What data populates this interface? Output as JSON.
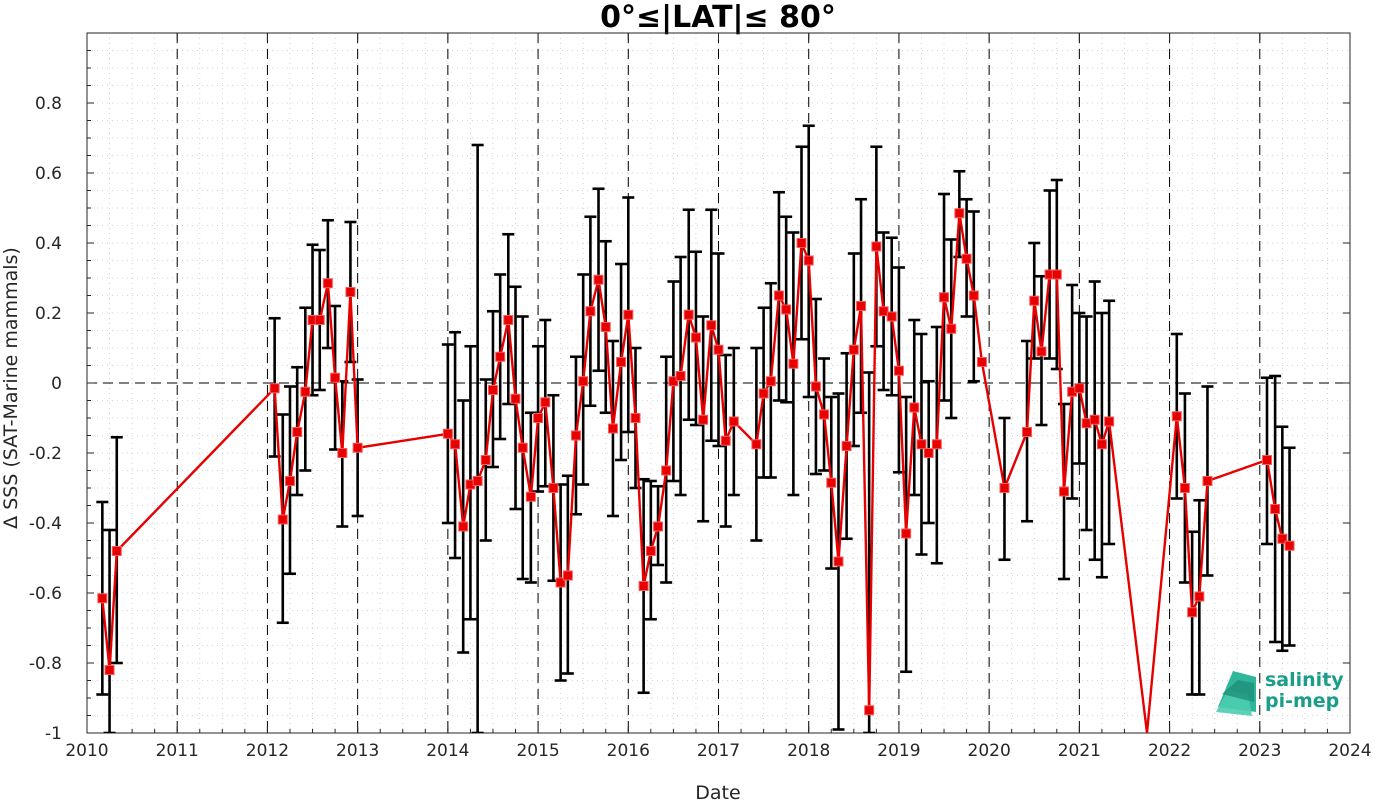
{
  "chart_data": {
    "type": "line",
    "title": "0°≤|LAT|≤ 80°",
    "xlabel": "Date",
    "ylabel": "Δ SSS (SAT-Marine mammals)",
    "xlim": [
      2010,
      2024
    ],
    "ylim": [
      -1,
      1
    ],
    "x_ticks": [
      "2010",
      "2011",
      "2012",
      "2013",
      "2014",
      "2015",
      "2016",
      "2017",
      "2018",
      "2019",
      "2020",
      "2021",
      "2022",
      "2023",
      "2024"
    ],
    "y_ticks": [
      "-1",
      "-0.8",
      "-0.6",
      "-0.4",
      "-0.2",
      "0",
      "0.2",
      "0.4",
      "0.6",
      "0.8"
    ],
    "grid": "minor dotted",
    "year_lines": "dashed vertical at each year",
    "zero_line": "dashed horizontal at 0",
    "series": [
      {
        "color": "#e60000",
        "marker": "square",
        "errorbar_color": "#000000",
        "points": [
          {
            "x": 2010.17,
            "y": -0.615,
            "lo": -0.89,
            "hi": -0.34
          },
          {
            "x": 2010.25,
            "y": -0.82,
            "lo": -1.0,
            "hi": -0.42
          },
          {
            "x": 2010.33,
            "y": -0.48,
            "lo": -0.8,
            "hi": -0.155
          },
          {
            "x": 2012.08,
            "y": -0.015,
            "lo": -0.21,
            "hi": 0.185
          },
          {
            "x": 2012.17,
            "y": -0.39,
            "lo": -0.685,
            "hi": -0.09
          },
          {
            "x": 2012.25,
            "y": -0.28,
            "lo": -0.545,
            "hi": -0.01
          },
          {
            "x": 2012.33,
            "y": -0.14,
            "lo": -0.32,
            "hi": 0.045
          },
          {
            "x": 2012.42,
            "y": -0.025,
            "lo": -0.25,
            "hi": 0.215
          },
          {
            "x": 2012.5,
            "y": 0.18,
            "lo": -0.035,
            "hi": 0.395
          },
          {
            "x": 2012.58,
            "y": 0.18,
            "lo": -0.02,
            "hi": 0.38
          },
          {
            "x": 2012.67,
            "y": 0.285,
            "lo": 0.1,
            "hi": 0.465
          },
          {
            "x": 2012.75,
            "y": 0.015,
            "lo": -0.19,
            "hi": 0.22
          },
          {
            "x": 2012.83,
            "y": -0.2,
            "lo": -0.41,
            "hi": 0.005
          },
          {
            "x": 2012.92,
            "y": 0.26,
            "lo": 0.06,
            "hi": 0.46
          },
          {
            "x": 2013.0,
            "y": -0.185,
            "lo": -0.38,
            "hi": 0.01
          },
          {
            "x": 2014.0,
            "y": -0.145,
            "lo": -0.4,
            "hi": 0.11
          },
          {
            "x": 2014.08,
            "y": -0.175,
            "lo": -0.5,
            "hi": 0.145
          },
          {
            "x": 2014.17,
            "y": -0.41,
            "lo": -0.77,
            "hi": -0.05
          },
          {
            "x": 2014.25,
            "y": -0.29,
            "lo": -0.675,
            "hi": 0.105
          },
          {
            "x": 2014.33,
            "y": -0.28,
            "lo": -1.0,
            "hi": 0.68
          },
          {
            "x": 2014.42,
            "y": -0.22,
            "lo": -0.45,
            "hi": 0.01
          },
          {
            "x": 2014.5,
            "y": -0.02,
            "lo": -0.24,
            "hi": 0.205
          },
          {
            "x": 2014.58,
            "y": 0.075,
            "lo": -0.16,
            "hi": 0.31
          },
          {
            "x": 2014.67,
            "y": 0.18,
            "lo": -0.06,
            "hi": 0.425
          },
          {
            "x": 2014.75,
            "y": -0.045,
            "lo": -0.36,
            "hi": 0.275
          },
          {
            "x": 2014.83,
            "y": -0.185,
            "lo": -0.56,
            "hi": 0.19
          },
          {
            "x": 2014.92,
            "y": -0.325,
            "lo": -0.57,
            "hi": -0.085
          },
          {
            "x": 2015.0,
            "y": -0.1,
            "lo": -0.31,
            "hi": 0.105
          },
          {
            "x": 2015.08,
            "y": -0.055,
            "lo": -0.295,
            "hi": 0.18
          },
          {
            "x": 2015.17,
            "y": -0.3,
            "lo": -0.565,
            "hi": -0.035
          },
          {
            "x": 2015.25,
            "y": -0.57,
            "lo": -0.85,
            "hi": -0.29
          },
          {
            "x": 2015.33,
            "y": -0.55,
            "lo": -0.83,
            "hi": -0.265
          },
          {
            "x": 2015.42,
            "y": -0.15,
            "lo": -0.375,
            "hi": 0.075
          },
          {
            "x": 2015.5,
            "y": 0.005,
            "lo": -0.29,
            "hi": 0.31
          },
          {
            "x": 2015.58,
            "y": 0.205,
            "lo": -0.065,
            "hi": 0.475
          },
          {
            "x": 2015.67,
            "y": 0.295,
            "lo": 0.035,
            "hi": 0.555
          },
          {
            "x": 2015.75,
            "y": 0.16,
            "lo": -0.085,
            "hi": 0.405
          },
          {
            "x": 2015.83,
            "y": -0.13,
            "lo": -0.38,
            "hi": 0.12
          },
          {
            "x": 2015.92,
            "y": 0.06,
            "lo": -0.22,
            "hi": 0.34
          },
          {
            "x": 2016.0,
            "y": 0.195,
            "lo": -0.14,
            "hi": 0.53
          },
          {
            "x": 2016.08,
            "y": -0.1,
            "lo": -0.3,
            "hi": 0.1
          },
          {
            "x": 2016.17,
            "y": -0.58,
            "lo": -0.885,
            "hi": -0.275
          },
          {
            "x": 2016.25,
            "y": -0.48,
            "lo": -0.675,
            "hi": -0.28
          },
          {
            "x": 2016.33,
            "y": -0.41,
            "lo": -0.52,
            "hi": -0.295
          },
          {
            "x": 2016.42,
            "y": -0.25,
            "lo": -0.57,
            "hi": 0.075
          },
          {
            "x": 2016.5,
            "y": 0.005,
            "lo": -0.28,
            "hi": 0.29
          },
          {
            "x": 2016.58,
            "y": 0.02,
            "lo": -0.32,
            "hi": 0.36
          },
          {
            "x": 2016.67,
            "y": 0.195,
            "lo": -0.105,
            "hi": 0.495
          },
          {
            "x": 2016.75,
            "y": 0.13,
            "lo": -0.12,
            "hi": 0.375
          },
          {
            "x": 2016.83,
            "y": -0.105,
            "lo": -0.395,
            "hi": 0.19
          },
          {
            "x": 2016.92,
            "y": 0.165,
            "lo": -0.165,
            "hi": 0.495
          },
          {
            "x": 2017.0,
            "y": 0.095,
            "lo": -0.18,
            "hi": 0.37
          },
          {
            "x": 2017.08,
            "y": -0.165,
            "lo": -0.41,
            "hi": 0.08
          },
          {
            "x": 2017.17,
            "y": -0.11,
            "lo": -0.32,
            "hi": 0.1
          },
          {
            "x": 2017.42,
            "y": -0.175,
            "lo": -0.45,
            "hi": 0.1
          },
          {
            "x": 2017.5,
            "y": -0.03,
            "lo": -0.27,
            "hi": 0.215
          },
          {
            "x": 2017.58,
            "y": 0.005,
            "lo": -0.27,
            "hi": 0.285
          },
          {
            "x": 2017.67,
            "y": 0.25,
            "lo": -0.05,
            "hi": 0.545
          },
          {
            "x": 2017.75,
            "y": 0.21,
            "lo": -0.055,
            "hi": 0.475
          },
          {
            "x": 2017.83,
            "y": 0.055,
            "lo": -0.32,
            "hi": 0.43
          },
          {
            "x": 2017.92,
            "y": 0.4,
            "lo": 0.125,
            "hi": 0.675
          },
          {
            "x": 2018.0,
            "y": 0.35,
            "lo": -0.04,
            "hi": 0.735
          },
          {
            "x": 2018.08,
            "y": -0.01,
            "lo": -0.26,
            "hi": 0.24
          },
          {
            "x": 2018.17,
            "y": -0.09,
            "lo": -0.25,
            "hi": 0.07
          },
          {
            "x": 2018.25,
            "y": -0.285,
            "lo": -0.53,
            "hi": -0.04
          },
          {
            "x": 2018.33,
            "y": -0.51,
            "lo": -0.99,
            "hi": -0.03
          },
          {
            "x": 2018.42,
            "y": -0.18,
            "lo": -0.445,
            "hi": 0.085
          },
          {
            "x": 2018.5,
            "y": 0.095,
            "lo": -0.18,
            "hi": 0.37
          },
          {
            "x": 2018.58,
            "y": 0.22,
            "lo": -0.085,
            "hi": 0.525
          },
          {
            "x": 2018.67,
            "y": -0.935,
            "lo": -1.0,
            "hi": 0.03
          },
          {
            "x": 2018.75,
            "y": 0.39,
            "lo": 0.105,
            "hi": 0.675
          },
          {
            "x": 2018.83,
            "y": 0.205,
            "lo": -0.02,
            "hi": 0.43
          },
          {
            "x": 2018.92,
            "y": 0.19,
            "lo": -0.035,
            "hi": 0.415
          },
          {
            "x": 2019.0,
            "y": 0.035,
            "lo": -0.255,
            "hi": 0.33
          },
          {
            "x": 2019.08,
            "y": -0.43,
            "lo": -0.825,
            "hi": -0.04
          },
          {
            "x": 2019.17,
            "y": -0.07,
            "lo": -0.32,
            "hi": 0.18
          },
          {
            "x": 2019.25,
            "y": -0.175,
            "lo": -0.49,
            "hi": 0.14
          },
          {
            "x": 2019.33,
            "y": -0.2,
            "lo": -0.4,
            "hi": 0.005
          },
          {
            "x": 2019.42,
            "y": -0.175,
            "lo": -0.515,
            "hi": 0.16
          },
          {
            "x": 2019.5,
            "y": 0.245,
            "lo": -0.05,
            "hi": 0.54
          },
          {
            "x": 2019.58,
            "y": 0.155,
            "lo": -0.1,
            "hi": 0.41
          },
          {
            "x": 2019.67,
            "y": 0.485,
            "lo": 0.36,
            "hi": 0.605
          },
          {
            "x": 2019.75,
            "y": 0.355,
            "lo": 0.19,
            "hi": 0.525
          },
          {
            "x": 2019.83,
            "y": 0.25,
            "lo": 0.005,
            "hi": 0.49
          },
          {
            "x": 2019.92,
            "y": 0.06,
            "lo": 0.06,
            "hi": 0.06
          },
          {
            "x": 2020.17,
            "y": -0.3,
            "lo": -0.505,
            "hi": -0.1
          },
          {
            "x": 2020.42,
            "y": -0.14,
            "lo": -0.395,
            "hi": 0.12
          },
          {
            "x": 2020.5,
            "y": 0.235,
            "lo": 0.07,
            "hi": 0.4
          },
          {
            "x": 2020.58,
            "y": 0.09,
            "lo": -0.12,
            "hi": 0.305
          },
          {
            "x": 2020.67,
            "y": 0.31,
            "lo": 0.07,
            "hi": 0.55
          },
          {
            "x": 2020.75,
            "y": 0.31,
            "lo": 0.04,
            "hi": 0.58
          },
          {
            "x": 2020.83,
            "y": -0.31,
            "lo": -0.56,
            "hi": -0.06
          },
          {
            "x": 2020.92,
            "y": -0.025,
            "lo": -0.33,
            "hi": 0.28
          },
          {
            "x": 2021.0,
            "y": -0.015,
            "lo": -0.23,
            "hi": 0.2
          },
          {
            "x": 2021.08,
            "y": -0.115,
            "lo": -0.42,
            "hi": 0.19
          },
          {
            "x": 2021.17,
            "y": -0.105,
            "lo": -0.505,
            "hi": 0.29
          },
          {
            "x": 2021.25,
            "y": -0.175,
            "lo": -0.555,
            "hi": 0.2
          },
          {
            "x": 2021.33,
            "y": -0.11,
            "lo": -0.46,
            "hi": 0.235
          },
          {
            "x": 2021.75,
            "y": -1.0,
            "lo": -1.0,
            "hi": -1.0
          },
          {
            "x": 2022.08,
            "y": -0.095,
            "lo": -0.33,
            "hi": 0.14
          },
          {
            "x": 2022.17,
            "y": -0.3,
            "lo": -0.57,
            "hi": -0.03
          },
          {
            "x": 2022.25,
            "y": -0.655,
            "lo": -0.89,
            "hi": -0.425
          },
          {
            "x": 2022.33,
            "y": -0.61,
            "lo": -0.89,
            "hi": -0.335
          },
          {
            "x": 2022.42,
            "y": -0.28,
            "lo": -0.55,
            "hi": -0.01
          },
          {
            "x": 2023.08,
            "y": -0.22,
            "lo": -0.46,
            "hi": 0.015
          },
          {
            "x": 2023.17,
            "y": -0.36,
            "lo": -0.74,
            "hi": 0.02
          },
          {
            "x": 2023.25,
            "y": -0.445,
            "lo": -0.765,
            "hi": -0.125
          },
          {
            "x": 2023.33,
            "y": -0.465,
            "lo": -0.75,
            "hi": -0.185
          }
        ]
      }
    ]
  },
  "logo": {
    "line1": "salinity",
    "line2": "pi-mep"
  }
}
